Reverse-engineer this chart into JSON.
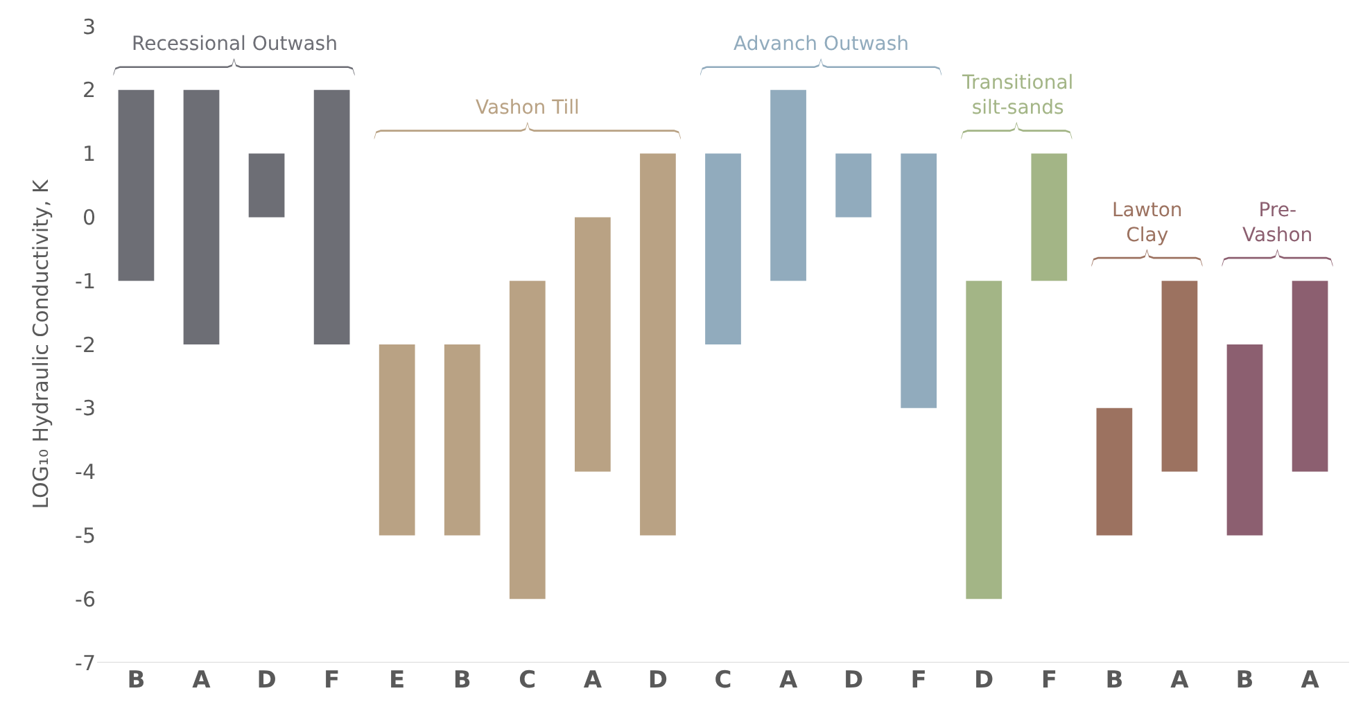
{
  "chart_data": {
    "type": "bar",
    "ylabel": "LOG₁₀ Hydraulic Conductivity, K",
    "categories": [
      "B",
      "A",
      "D",
      "F",
      "E",
      "B",
      "C",
      "A",
      "D",
      "C",
      "A",
      "D",
      "F",
      "D",
      "F",
      "B",
      "A",
      "B",
      "A"
    ],
    "base": [
      -1,
      -2,
      0,
      -2,
      -5,
      -5,
      -6,
      -4,
      -5,
      -2,
      -1,
      0,
      -3,
      -6,
      -1,
      -5,
      -4,
      -5,
      -4
    ],
    "values": [
      3,
      4,
      1,
      4,
      3,
      3,
      5,
      4,
      6,
      3,
      3,
      1,
      4,
      5,
      2,
      2,
      3,
      3,
      3
    ],
    "colors": [
      "#6d6e75",
      "#6d6e75",
      "#6d6e75",
      "#6d6e75",
      "#b9a284",
      "#b9a284",
      "#b9a284",
      "#b9a284",
      "#b9a284",
      "#91abbd",
      "#91abbd",
      "#91abbd",
      "#91abbd",
      "#a3b586",
      "#a3b586",
      "#9c7260",
      "#9c7260",
      "#8c5f70",
      "#8c5f70"
    ],
    "ylim": [
      -7,
      3
    ],
    "yticks": [
      -7,
      -6,
      -5,
      -4,
      -3,
      -2,
      -1,
      0,
      1,
      2,
      3
    ],
    "annotations": [
      "Recessional Outwash",
      "Vashon Till",
      "Advanch Outwash",
      "Transitional\nsilt-sands",
      "Lawton\nClay",
      "Pre-\nVashon"
    ]
  }
}
